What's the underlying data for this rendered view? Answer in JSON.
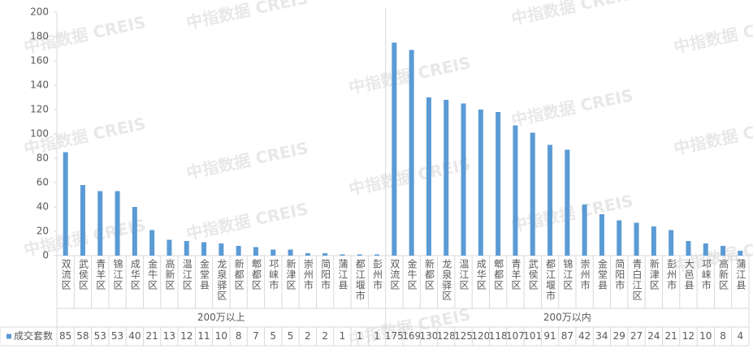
{
  "chart_data": {
    "type": "bar",
    "watermark": "中指数据 CREIS",
    "series_name": "成交套数",
    "color": "#5b9bd5",
    "ylim": [
      0,
      200
    ],
    "yticks": [
      0,
      20,
      40,
      60,
      80,
      100,
      120,
      140,
      160,
      180,
      200
    ],
    "groups": [
      {
        "label": "200万以上",
        "categories": [
          "双流区",
          "武侯区",
          "青羊区",
          "锦江区",
          "成华区",
          "金牛区",
          "高新区",
          "温江区",
          "金堂县",
          "龙泉驿区",
          "新都区",
          "郫都区",
          "邛崃市",
          "新津区",
          "崇州市",
          "简阳市",
          "蒲江县",
          "都江堰市",
          "彭州市"
        ],
        "values": [
          85,
          58,
          53,
          53,
          40,
          21,
          13,
          12,
          11,
          10,
          8,
          7,
          5,
          5,
          2,
          2,
          1,
          1,
          1
        ]
      },
      {
        "label": "200万以内",
        "categories": [
          "双流区",
          "金牛区",
          "新都区",
          "龙泉驿区",
          "温江区",
          "成华区",
          "郫都区",
          "青羊区",
          "武侯区",
          "都江堰市",
          "锦江区",
          "崇州市",
          "金堂县",
          "简阳市",
          "青白江区",
          "新津区",
          "彭州市",
          "大邑县",
          "邛崃市",
          "高新区",
          "蒲江县"
        ],
        "values": [
          175,
          169,
          130,
          128,
          125,
          120,
          118,
          107,
          101,
          91,
          87,
          42,
          34,
          29,
          27,
          24,
          21,
          12,
          10,
          8,
          4
        ]
      }
    ]
  }
}
